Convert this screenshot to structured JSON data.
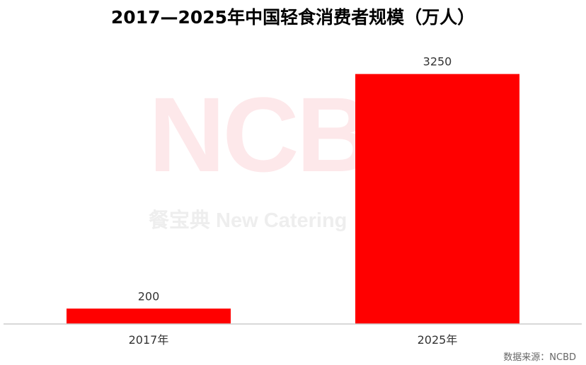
{
  "title": "2017—2025年中国轻食消费者规模（万人）",
  "watermark": {
    "logo": "NCB",
    "subtitle": "餐宝典 New Catering"
  },
  "source": "数据来源：NCBD",
  "colors": {
    "bar": "#ff0000",
    "axis": "#cccccc",
    "watermark": "#fde8ea"
  },
  "chart_data": {
    "type": "bar",
    "categories": [
      "2017年",
      "2025年"
    ],
    "values": [
      200,
      3250
    ],
    "data_labels": [
      "200",
      "3250"
    ],
    "title": "2017—2025年中国轻食消费者规模（万人）",
    "xlabel": "",
    "ylabel": "",
    "ylim": [
      0,
      3550
    ],
    "grid": false,
    "legend": "none"
  }
}
